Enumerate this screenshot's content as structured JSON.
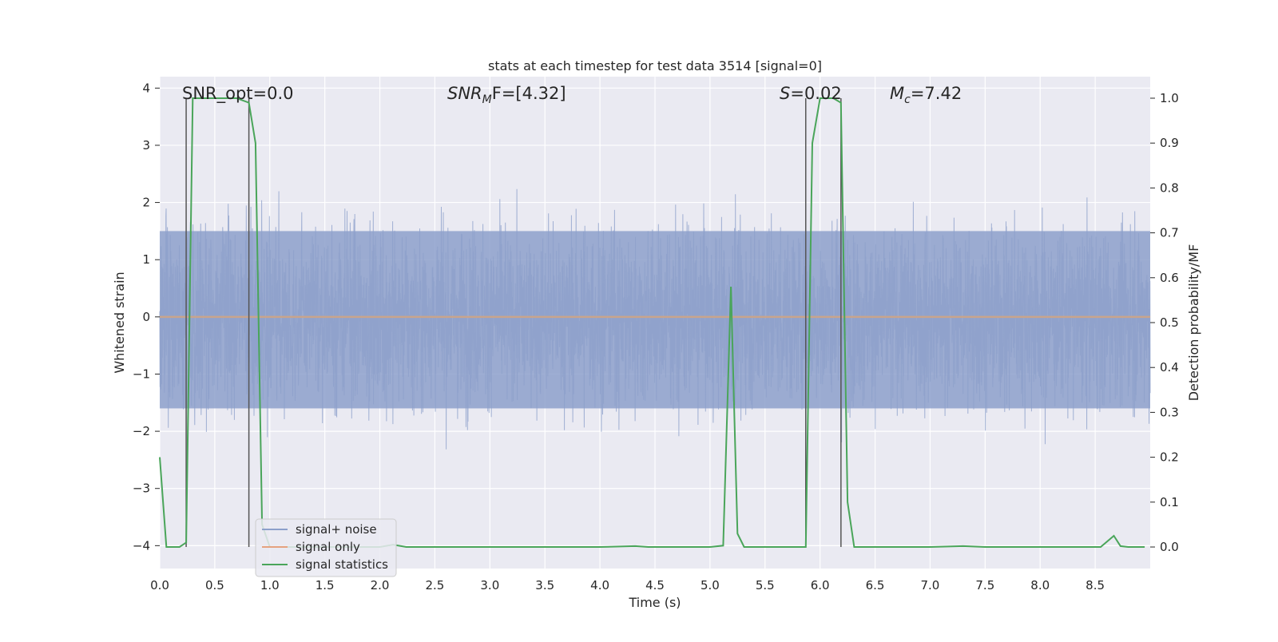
{
  "chart_data": {
    "type": "line",
    "title": "stats at each timestep for test data 3514 [signal=0]",
    "xlabel": "Time (s)",
    "ylabel_left": "Whitened strain",
    "ylabel_right": "Detection probability/MF",
    "xlim": [
      0.0,
      9.0
    ],
    "ylim_left": [
      -4.4,
      4.2
    ],
    "ylim_right": [
      -0.048,
      1.048
    ],
    "x_ticks": [
      "0.0",
      "0.5",
      "1.0",
      "1.5",
      "2.0",
      "2.5",
      "3.0",
      "3.5",
      "4.0",
      "4.5",
      "5.0",
      "5.5",
      "6.0",
      "6.5",
      "7.0",
      "7.5",
      "8.0",
      "8.5"
    ],
    "x_tick_values": [
      0.0,
      0.5,
      1.0,
      1.5,
      2.0,
      2.5,
      3.0,
      3.5,
      4.0,
      4.5,
      5.0,
      5.5,
      6.0,
      6.5,
      7.0,
      7.5,
      8.0,
      8.5
    ],
    "y_left_ticks": [
      "4",
      "3",
      "2",
      "1",
      "0",
      "−1",
      "−2",
      "−3",
      "−4"
    ],
    "y_left_tick_values": [
      4,
      3,
      2,
      1,
      0,
      -1,
      -2,
      -3,
      -4
    ],
    "y_right_ticks": [
      "1.0",
      "0.9",
      "0.8",
      "0.7",
      "0.6",
      "0.5",
      "0.4",
      "0.3",
      "0.2",
      "0.1",
      "0.0"
    ],
    "y_right_tick_values": [
      1.0,
      0.9,
      0.8,
      0.7,
      0.6,
      0.5,
      0.4,
      0.3,
      0.2,
      0.1,
      0.0
    ],
    "annotations": {
      "snr_opt": "SNR_opt=0.0",
      "snr_mf_prefix": "SNR",
      "snr_mf_sub": "M",
      "snr_mf_suffix": "F=[4.32]",
      "s_prefix": "S",
      "s_value": "=0.02",
      "mc_prefix": "M",
      "mc_sub": "c",
      "mc_value": "=7.42"
    },
    "vertical_lines_s": [
      0.24,
      0.81,
      5.87,
      6.19
    ],
    "legend": {
      "location": "lower-left",
      "entries": [
        {
          "label": "signal+ noise",
          "color": "#8da0cb"
        },
        {
          "label": "signal only",
          "color": "#e5a27f"
        },
        {
          "label": "signal statistics",
          "color": "#4aa55a"
        }
      ]
    },
    "series": [
      {
        "name": "signal+ noise",
        "axis": "left",
        "style": "dense noise trace",
        "envelope_typical": [
          -2.0,
          2.2
        ],
        "dense_band": [
          -1.6,
          1.5
        ],
        "color": "#8da0cb"
      },
      {
        "name": "signal only",
        "axis": "left",
        "x": [
          0.0,
          9.0
        ],
        "y": [
          0.0,
          0.0
        ],
        "color": "#e5a27f"
      },
      {
        "name": "signal statistics",
        "axis": "right",
        "color": "#4aa55a",
        "x": [
          0.0,
          0.06,
          0.18,
          0.24,
          0.3,
          0.36,
          0.5,
          0.7,
          0.81,
          0.87,
          0.93,
          1.0,
          1.5,
          2.0,
          2.12,
          2.24,
          3.0,
          4.0,
          4.32,
          4.44,
          5.0,
          5.12,
          5.19,
          5.25,
          5.31,
          5.5,
          5.8,
          5.87,
          5.93,
          6.0,
          6.12,
          6.19,
          6.25,
          6.31,
          6.5,
          7.0,
          7.3,
          7.5,
          8.0,
          8.55,
          8.67,
          8.73,
          8.8,
          8.95
        ],
        "y": [
          0.2,
          0.0,
          0.0,
          0.01,
          1.0,
          1.0,
          1.0,
          1.0,
          0.99,
          0.9,
          0.05,
          0.0,
          0.0,
          0.0,
          0.005,
          0.0,
          0.0,
          0.0,
          0.002,
          0.0,
          0.0,
          0.003,
          0.58,
          0.03,
          0.0,
          0.0,
          0.0,
          0.0,
          0.9,
          1.0,
          1.0,
          0.99,
          0.1,
          0.0,
          0.0,
          0.0,
          0.002,
          0.0,
          0.0,
          0.0,
          0.025,
          0.002,
          0.0,
          0.0
        ]
      }
    ]
  }
}
